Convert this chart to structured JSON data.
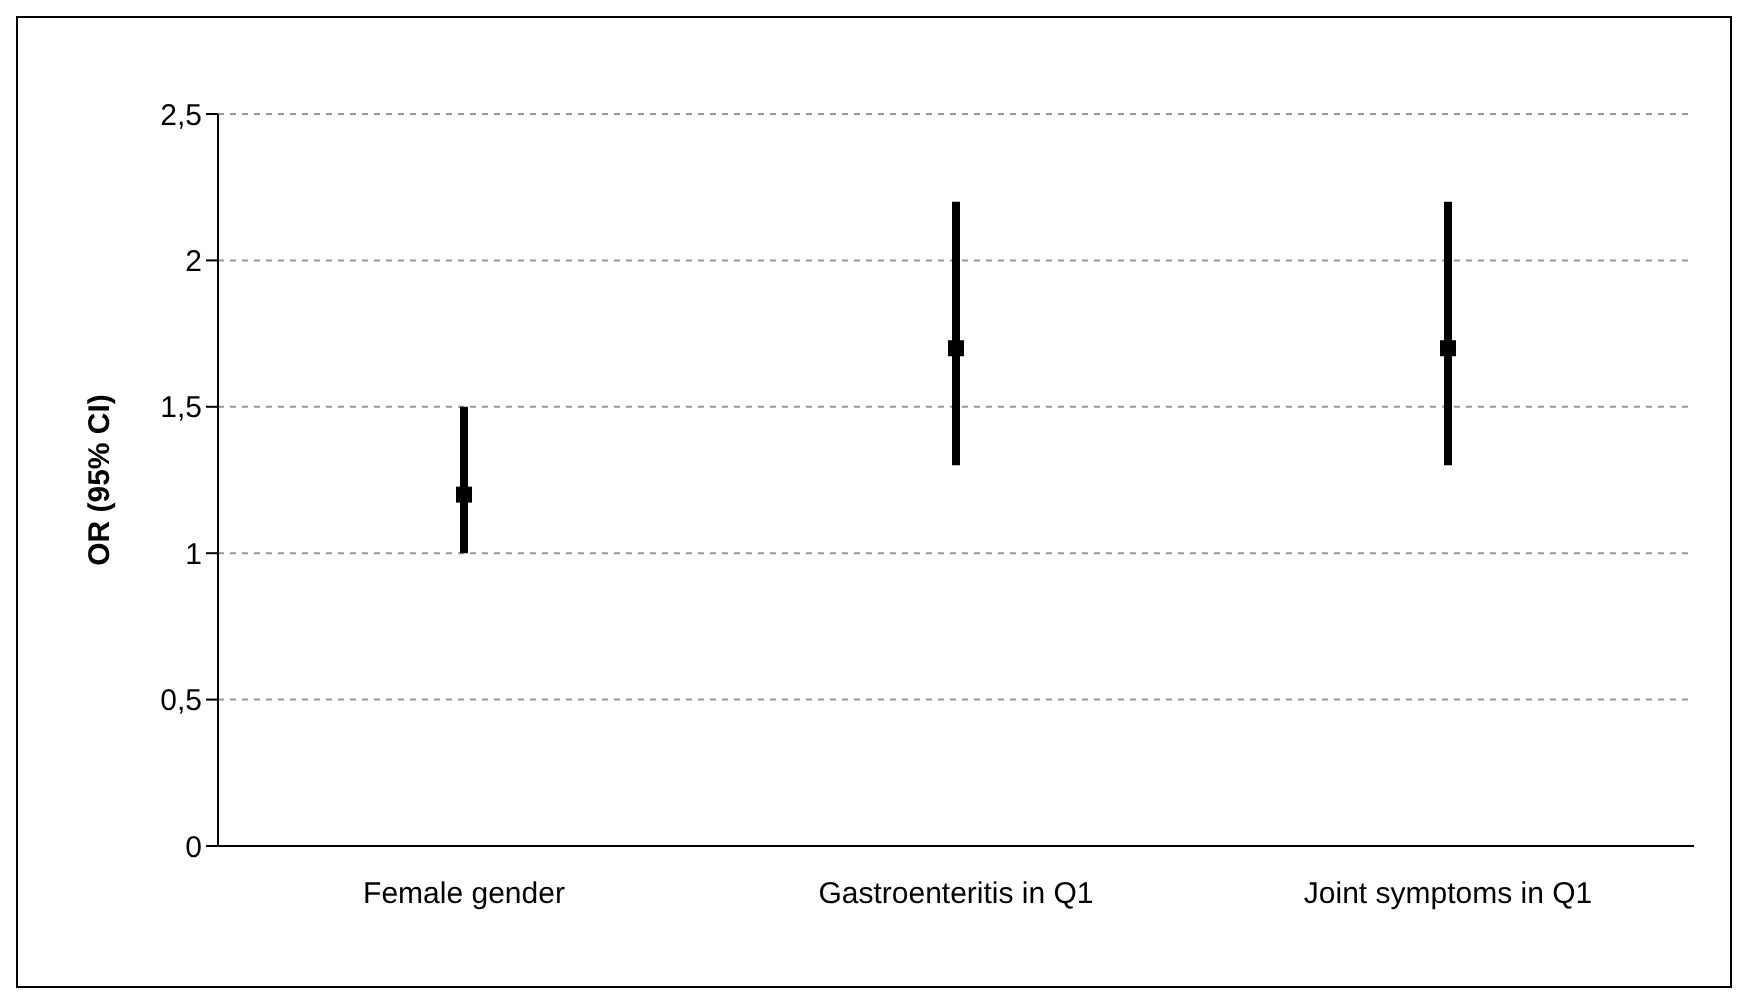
{
  "chart_data": {
    "type": "scatter",
    "ylabel": "OR (95% CI)",
    "categories": [
      "Female gender",
      "Gastroenteritis in Q1",
      "Joint symptoms in Q1"
    ],
    "series": [
      {
        "color": "#000000",
        "values": [
          1.2,
          1.7,
          1.7
        ],
        "errors": [
          [
            1.0,
            1.5
          ],
          [
            1.3,
            2.2
          ],
          [
            1.3,
            2.2
          ]
        ]
      }
    ],
    "ylim": [
      0,
      2.5
    ],
    "yticks": [
      0,
      {
        "value": 0.5,
        "label": "0,5"
      },
      1,
      {
        "value": 1.5,
        "label": "1,5"
      },
      2,
      {
        "value": 2.5,
        "label": "2,5"
      }
    ],
    "grid": "y",
    "marker": "square",
    "legend": false
  }
}
